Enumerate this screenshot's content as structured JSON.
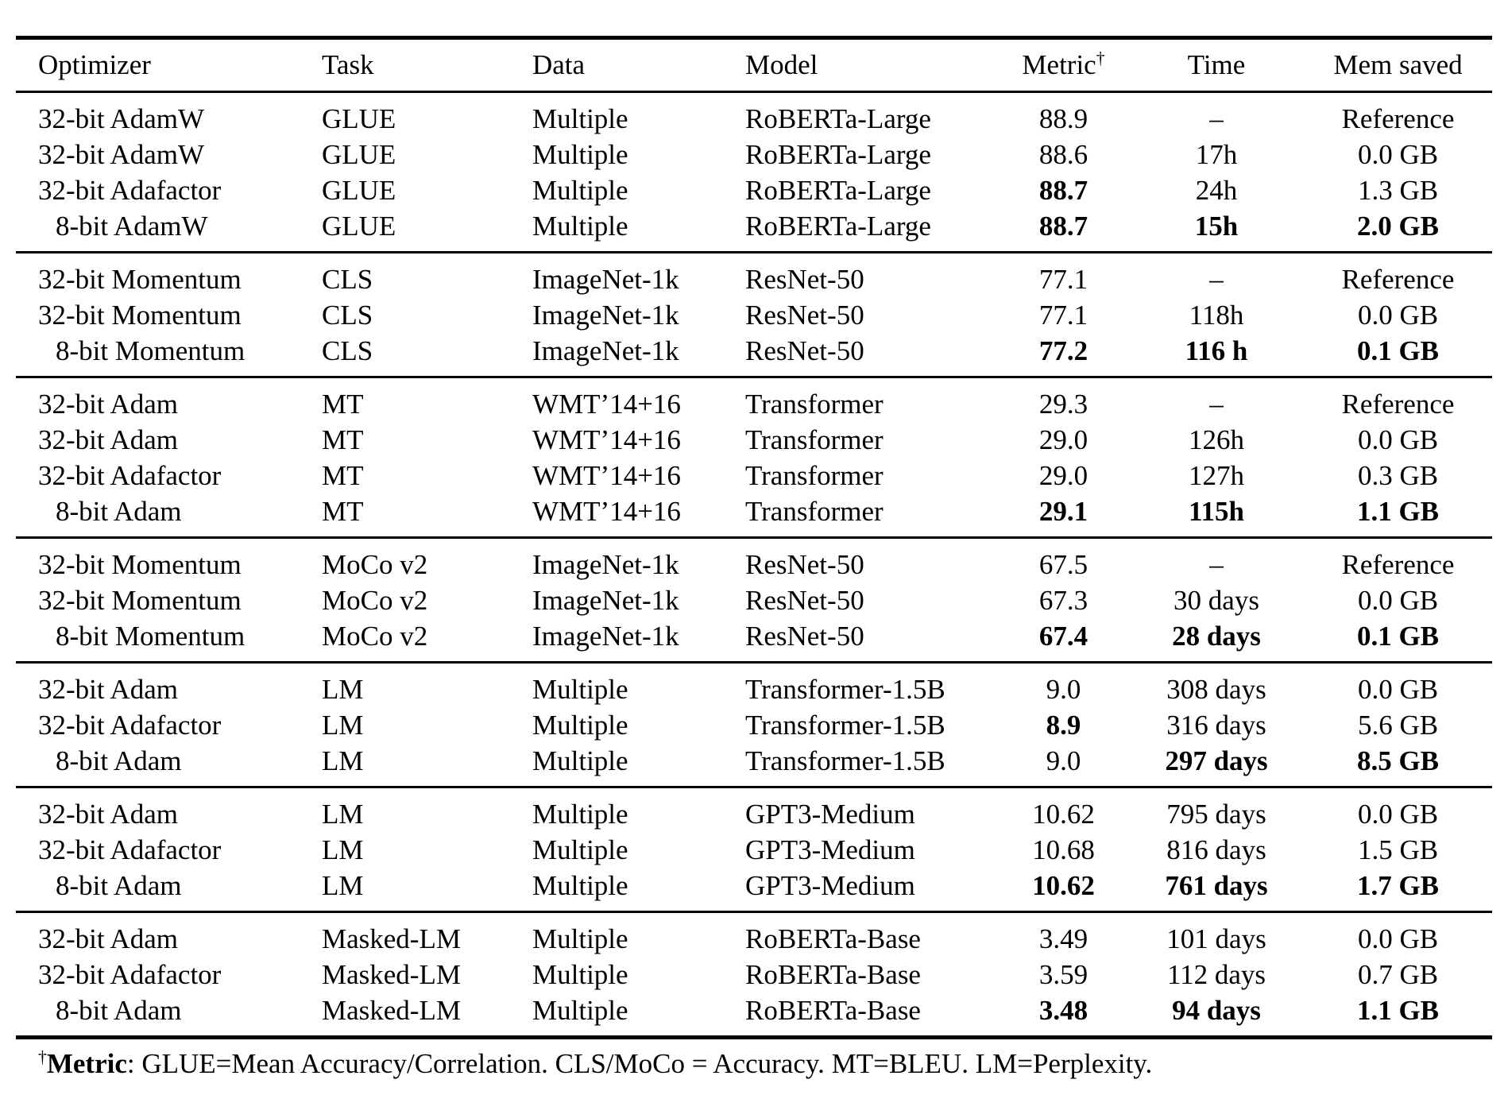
{
  "table": {
    "columns": [
      {
        "label": "Optimizer"
      },
      {
        "label": "Task"
      },
      {
        "label": "Data"
      },
      {
        "label": "Model"
      },
      {
        "label": "Metric",
        "sup": "†"
      },
      {
        "label": "Time"
      },
      {
        "label": "Mem saved"
      }
    ],
    "groups": [
      {
        "rows": [
          {
            "optimizer": "32-bit AdamW",
            "task": "GLUE",
            "data": "Multiple",
            "model": "RoBERTa-Large",
            "metric": "88.9",
            "time": "–",
            "mem": "Reference",
            "bold": {
              "metric": false,
              "time": false,
              "mem": false
            }
          },
          {
            "optimizer": "32-bit AdamW",
            "task": "GLUE",
            "data": "Multiple",
            "model": "RoBERTa-Large",
            "metric": "88.6",
            "time": "17h",
            "mem": "0.0 GB",
            "bold": {
              "metric": false,
              "time": false,
              "mem": false
            }
          },
          {
            "optimizer": "32-bit Adafactor",
            "task": "GLUE",
            "data": "Multiple",
            "model": "RoBERTa-Large",
            "metric": "88.7",
            "time": "24h",
            "mem": "1.3 GB",
            "bold": {
              "metric": true,
              "time": false,
              "mem": false
            }
          },
          {
            "optimizer": "8-bit AdamW",
            "task": "GLUE",
            "data": "Multiple",
            "model": "RoBERTa-Large",
            "metric": "88.7",
            "time": "15h",
            "mem": "2.0 GB",
            "bold": {
              "metric": true,
              "time": true,
              "mem": true
            }
          }
        ]
      },
      {
        "rows": [
          {
            "optimizer": "32-bit Momentum",
            "task": "CLS",
            "data": "ImageNet-1k",
            "model": "ResNet-50",
            "metric": "77.1",
            "time": "–",
            "mem": "Reference",
            "bold": {
              "metric": false,
              "time": false,
              "mem": false
            }
          },
          {
            "optimizer": "32-bit Momentum",
            "task": "CLS",
            "data": "ImageNet-1k",
            "model": "ResNet-50",
            "metric": "77.1",
            "time": "118h",
            "mem": "0.0 GB",
            "bold": {
              "metric": false,
              "time": false,
              "mem": false
            }
          },
          {
            "optimizer": "8-bit Momentum",
            "task": "CLS",
            "data": "ImageNet-1k",
            "model": "ResNet-50",
            "metric": "77.2",
            "time": "116 h",
            "mem": "0.1 GB",
            "bold": {
              "metric": true,
              "time": true,
              "mem": true
            }
          }
        ]
      },
      {
        "rows": [
          {
            "optimizer": "32-bit Adam",
            "task": "MT",
            "data": "WMT’14+16",
            "model": "Transformer",
            "metric": "29.3",
            "time": "–",
            "mem": "Reference",
            "bold": {
              "metric": false,
              "time": false,
              "mem": false
            }
          },
          {
            "optimizer": "32-bit Adam",
            "task": "MT",
            "data": "WMT’14+16",
            "model": "Transformer",
            "metric": "29.0",
            "time": "126h",
            "mem": "0.0 GB",
            "bold": {
              "metric": false,
              "time": false,
              "mem": false
            }
          },
          {
            "optimizer": "32-bit Adafactor",
            "task": "MT",
            "data": "WMT’14+16",
            "model": "Transformer",
            "metric": "29.0",
            "time": "127h",
            "mem": "0.3 GB",
            "bold": {
              "metric": false,
              "time": false,
              "mem": false
            }
          },
          {
            "optimizer": "8-bit Adam",
            "task": "MT",
            "data": "WMT’14+16",
            "model": "Transformer",
            "metric": "29.1",
            "time": "115h",
            "mem": "1.1 GB",
            "bold": {
              "metric": true,
              "time": true,
              "mem": true
            }
          }
        ]
      },
      {
        "rows": [
          {
            "optimizer": "32-bit Momentum",
            "task": "MoCo v2",
            "data": "ImageNet-1k",
            "model": "ResNet-50",
            "metric": "67.5",
            "time": "–",
            "mem": "Reference",
            "bold": {
              "metric": false,
              "time": false,
              "mem": false
            }
          },
          {
            "optimizer": "32-bit Momentum",
            "task": "MoCo v2",
            "data": "ImageNet-1k",
            "model": "ResNet-50",
            "metric": "67.3",
            "time": "30 days",
            "mem": "0.0 GB",
            "bold": {
              "metric": false,
              "time": false,
              "mem": false
            }
          },
          {
            "optimizer": "8-bit Momentum",
            "task": "MoCo v2",
            "data": "ImageNet-1k",
            "model": "ResNet-50",
            "metric": "67.4",
            "time": "28 days",
            "mem": "0.1 GB",
            "bold": {
              "metric": true,
              "time": true,
              "mem": true
            }
          }
        ]
      },
      {
        "rows": [
          {
            "optimizer": "32-bit Adam",
            "task": "LM",
            "data": "Multiple",
            "model": "Transformer-1.5B",
            "metric": "9.0",
            "time": "308 days",
            "mem": "0.0 GB",
            "bold": {
              "metric": false,
              "time": false,
              "mem": false
            }
          },
          {
            "optimizer": "32-bit Adafactor",
            "task": "LM",
            "data": "Multiple",
            "model": "Transformer-1.5B",
            "metric": "8.9",
            "time": "316 days",
            "mem": "5.6 GB",
            "bold": {
              "metric": true,
              "time": false,
              "mem": false
            }
          },
          {
            "optimizer": "8-bit Adam",
            "task": "LM",
            "data": "Multiple",
            "model": "Transformer-1.5B",
            "metric": "9.0",
            "time": "297 days",
            "mem": "8.5 GB",
            "bold": {
              "metric": false,
              "time": true,
              "mem": true
            }
          }
        ]
      },
      {
        "rows": [
          {
            "optimizer": "32-bit Adam",
            "task": "LM",
            "data": "Multiple",
            "model": "GPT3-Medium",
            "metric": "10.62",
            "time": "795 days",
            "mem": "0.0 GB",
            "bold": {
              "metric": false,
              "time": false,
              "mem": false
            }
          },
          {
            "optimizer": "32-bit Adafactor",
            "task": "LM",
            "data": "Multiple",
            "model": "GPT3-Medium",
            "metric": "10.68",
            "time": "816 days",
            "mem": "1.5 GB",
            "bold": {
              "metric": false,
              "time": false,
              "mem": false
            }
          },
          {
            "optimizer": "8-bit Adam",
            "task": "LM",
            "data": "Multiple",
            "model": "GPT3-Medium",
            "metric": "10.62",
            "time": "761 days",
            "mem": "1.7 GB",
            "bold": {
              "metric": true,
              "time": true,
              "mem": true
            }
          }
        ]
      },
      {
        "rows": [
          {
            "optimizer": "32-bit Adam",
            "task": "Masked-LM",
            "data": "Multiple",
            "model": "RoBERTa-Base",
            "metric": "3.49",
            "time": "101 days",
            "mem": "0.0 GB",
            "bold": {
              "metric": false,
              "time": false,
              "mem": false
            }
          },
          {
            "optimizer": "32-bit Adafactor",
            "task": "Masked-LM",
            "data": "Multiple",
            "model": "RoBERTa-Base",
            "metric": "3.59",
            "time": "112 days",
            "mem": "0.7 GB",
            "bold": {
              "metric": false,
              "time": false,
              "mem": false
            }
          },
          {
            "optimizer": "8-bit Adam",
            "task": "Masked-LM",
            "data": "Multiple",
            "model": "RoBERTa-Base",
            "metric": "3.48",
            "time": "94 days",
            "mem": "1.1 GB",
            "bold": {
              "metric": true,
              "time": true,
              "mem": true
            }
          }
        ]
      }
    ]
  },
  "footnote": {
    "sup": "†",
    "label": "Metric",
    "rest": ": GLUE=Mean Accuracy/Correlation. CLS/MoCo = Accuracy. MT=BLEU. LM=Perplexity."
  }
}
